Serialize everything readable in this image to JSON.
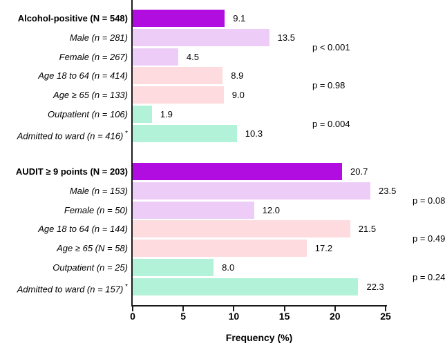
{
  "chart_data": {
    "type": "bar",
    "orientation": "horizontal",
    "title": "",
    "xlabel": "Frequency (%)",
    "xlim": [
      0,
      25
    ],
    "xticks": [
      "0",
      "5",
      "10",
      "15",
      "20",
      "25"
    ],
    "grid": false,
    "legend": "none",
    "bar_colors": {
      "overall": "#B10DE1",
      "sex": "#EDCDF8",
      "age": "#FDDBDE",
      "setting": "#B2F2D9"
    },
    "axis_color": "#1a1a1a",
    "groups": [
      {
        "name": "alcohol-positive",
        "bars": [
          {
            "label": "Alcohol-positive (N = 548)",
            "value": 9.1,
            "display": "9.1",
            "color": "overall",
            "header": true
          },
          {
            "label": "Male (n = 281)",
            "value": 13.5,
            "display": "13.5",
            "color": "sex"
          },
          {
            "label": "Female (n = 267)",
            "value": 4.5,
            "display": "4.5",
            "color": "sex"
          },
          {
            "label": "Age 18 to 64 (n = 414)",
            "value": 8.9,
            "display": "8.9",
            "color": "age"
          },
          {
            "label": "Age ≥ 65 (n = 133)",
            "value": 9.0,
            "display": "9.0",
            "color": "age"
          },
          {
            "label": "Outpatient (n = 106)",
            "value": 1.9,
            "display": "1.9",
            "color": "setting"
          },
          {
            "label": "Admitted to ward (n = 416)",
            "asterisk": "*",
            "value": 10.3,
            "display": "10.3",
            "color": "setting"
          }
        ],
        "p_values": [
          {
            "text": "p < 0.001",
            "pair": [
              1,
              2
            ],
            "column": "inner"
          },
          {
            "text": "p = 0.98",
            "pair": [
              3,
              4
            ],
            "column": "inner"
          },
          {
            "text": "p = 0.004",
            "pair": [
              5,
              6
            ],
            "column": "inner"
          }
        ]
      },
      {
        "name": "audit-ge-9-points",
        "bars": [
          {
            "label": "AUDIT ≥ 9 points (N = 203)",
            "value": 20.7,
            "display": "20.7",
            "color": "overall",
            "header": true
          },
          {
            "label": "Male (n = 153)",
            "value": 23.5,
            "display": "23.5",
            "color": "sex"
          },
          {
            "label": "Female (n = 50)",
            "value": 12.0,
            "display": "12.0",
            "color": "sex"
          },
          {
            "label": "Age 18 to 64 (n = 144)",
            "value": 21.5,
            "display": "21.5",
            "color": "age"
          },
          {
            "label": "Age ≥ 65 (N = 58)",
            "value": 17.2,
            "display": "17.2",
            "color": "age"
          },
          {
            "label": "Outpatient (n = 25)",
            "value": 8.0,
            "display": "8.0",
            "color": "setting"
          },
          {
            "label": "Admitted to ward (n = 157)",
            "asterisk": "*",
            "value": 22.3,
            "display": "22.3",
            "color": "setting"
          }
        ],
        "p_values": [
          {
            "text": "p = 0.08",
            "pair": [
              1,
              2
            ],
            "column": "outer"
          },
          {
            "text": "p = 0.49",
            "pair": [
              3,
              4
            ],
            "column": "outer"
          },
          {
            "text": "p = 0.24",
            "pair": [
              5,
              6
            ],
            "column": "outer"
          }
        ]
      }
    ]
  }
}
